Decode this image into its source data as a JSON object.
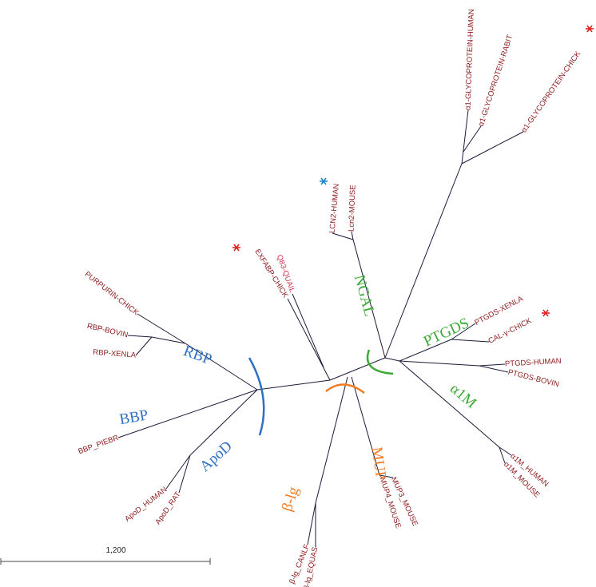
{
  "leaves": [
    "α1-GLYCOPROTEIN-HUMAN",
    "α1-GLYCOPROTEIN-RABIT",
    "α1-GLYCOPROTEIN-CHICK",
    "Lcn2-MOUSE",
    "LCN2-HUMAN",
    "Q83-QUAIL",
    "EXFABP-CHICK",
    "PURPURIN-CHICK",
    "RBP-BOVIN",
    "RBP-XENLA",
    "BBP_PIEBR",
    "ApoD_HUMAN",
    "ApoD_RAT",
    "β-lg_CANLF",
    "β-lg_EQUAS",
    "MUP4_MOUSE",
    "MUP3_MOUSE",
    "α1M_HUMAN",
    "α1M_MOUSE",
    "PTGDS-HUMAN",
    "PTGDS-BOVIN",
    "PTGDS-XENLA",
    "CAL-γ-CHICK"
  ],
  "groups": [
    "RBP",
    "BBP",
    "ApoD",
    "β-lg",
    "MUP",
    "NGAL",
    "PTGDS",
    "α1M"
  ],
  "scale_bar": {
    "label": "1,200"
  }
}
